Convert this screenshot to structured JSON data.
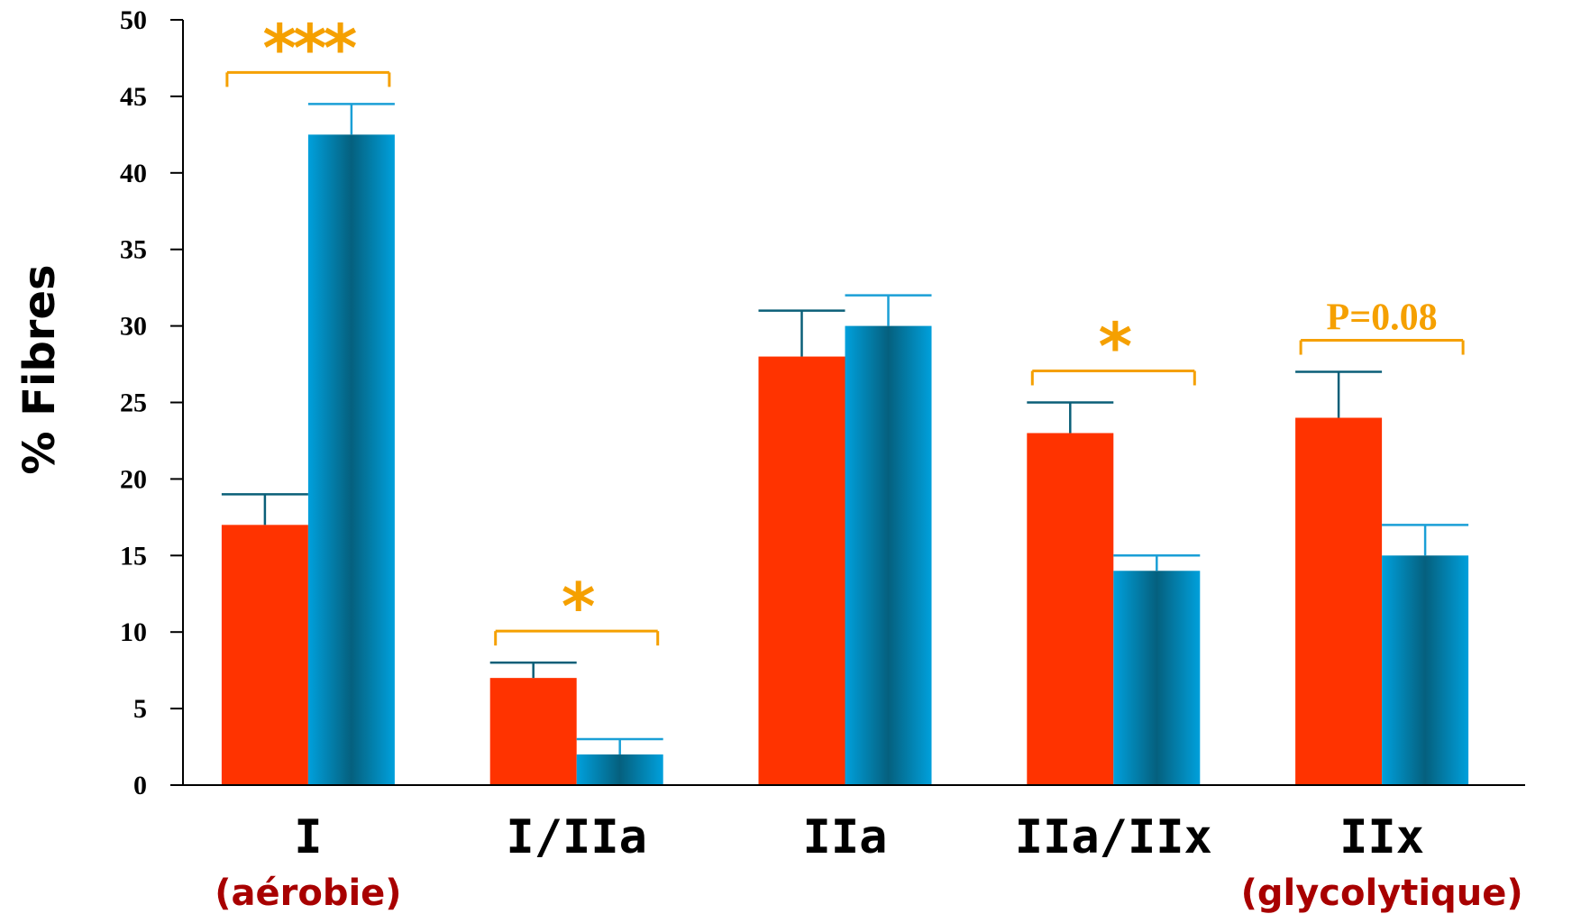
{
  "chart_data": {
    "type": "bar",
    "title": "",
    "xlabel": "",
    "ylabel": "% Fibres",
    "ylim": [
      0,
      50
    ],
    "yticks": [
      0,
      5,
      10,
      15,
      20,
      25,
      30,
      35,
      40,
      45,
      50
    ],
    "grid": false,
    "categories": [
      "I",
      "I/IIa",
      "IIa",
      "IIa/IIx",
      "IIx"
    ],
    "category_sublabels": [
      "(aérobie)",
      "",
      "",
      "",
      "(glycolytique)"
    ],
    "series": [
      {
        "color": "#ff3300",
        "values": [
          17,
          7,
          28,
          23,
          24
        ],
        "errors": [
          2,
          1,
          3,
          2,
          3
        ]
      },
      {
        "color": "#00a0dc",
        "values": [
          42.5,
          2,
          30,
          14,
          15
        ],
        "errors": [
          2,
          1,
          2,
          1,
          2
        ]
      }
    ],
    "annotations": [
      {
        "category": 0,
        "text": "***"
      },
      {
        "category": 1,
        "text": "*"
      },
      {
        "category": 3,
        "text": "*"
      },
      {
        "category": 4,
        "text": "P=0.08"
      }
    ]
  }
}
